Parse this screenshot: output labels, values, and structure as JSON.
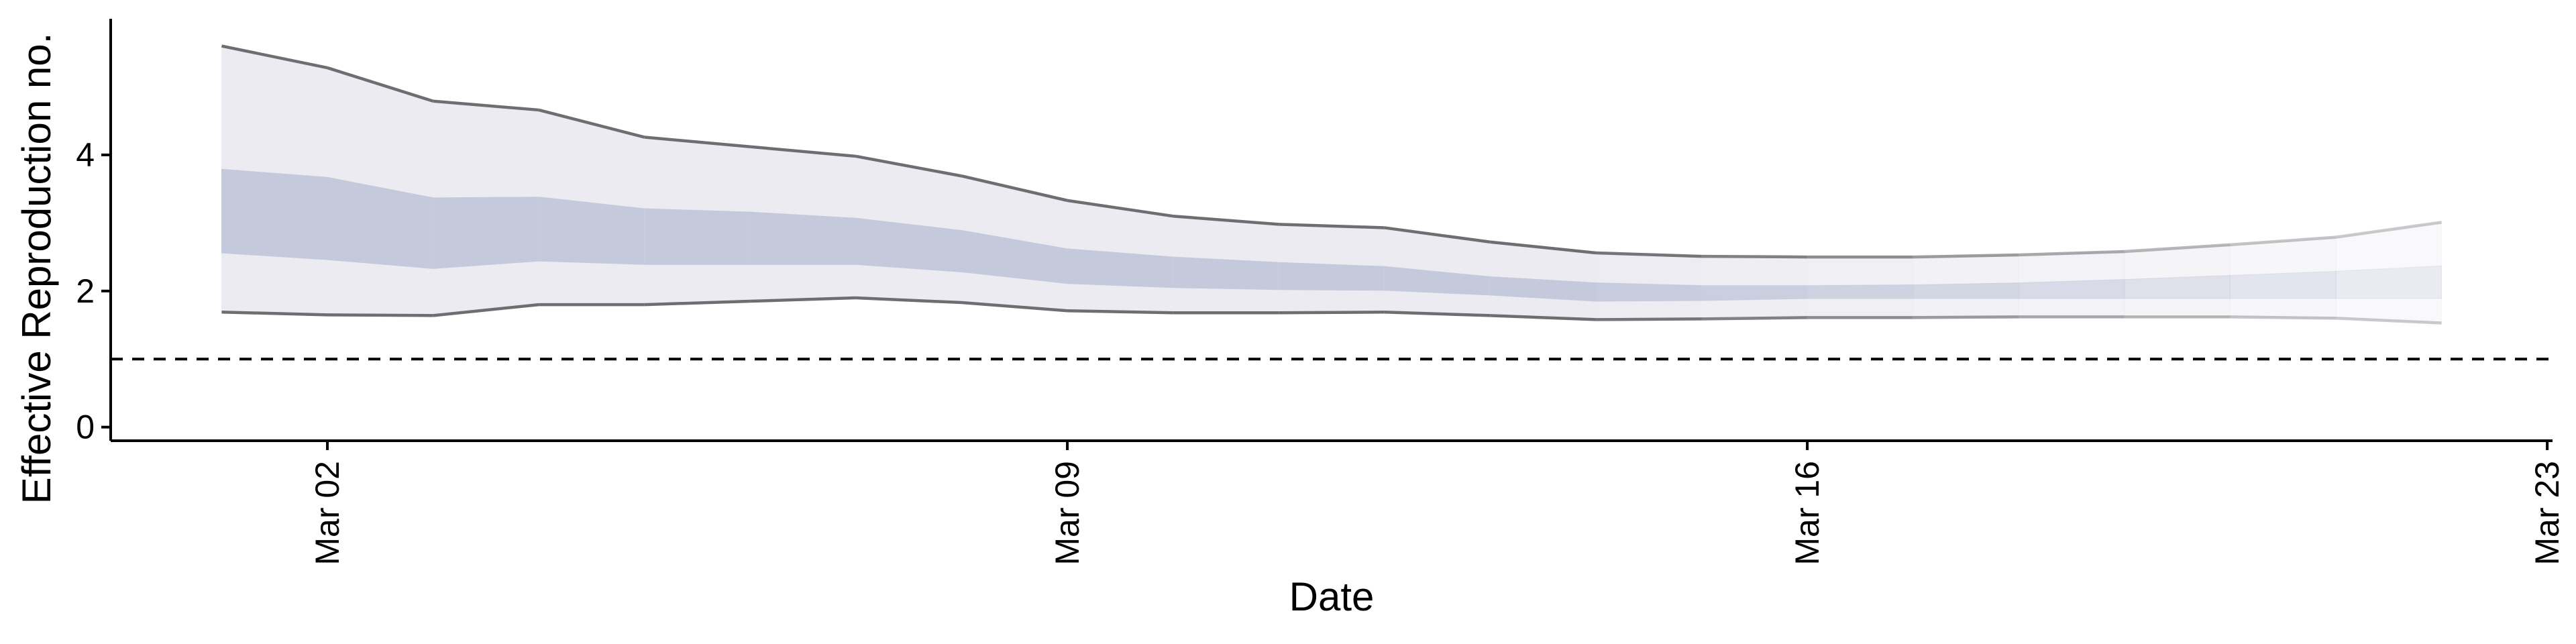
{
  "chart_data": {
    "type": "area",
    "xlabel": "Date",
    "ylabel": "Effective Reproduction no.",
    "x_ticks": [
      "Mar 02",
      "Mar 09",
      "Mar 16",
      "Mar 23"
    ],
    "x_tick_day": [
      2,
      9,
      16,
      23
    ],
    "xlim": [
      -0.05,
      23.05
    ],
    "y_ticks": [
      "0",
      "2",
      "4"
    ],
    "y_tick_values": [
      0,
      2,
      4
    ],
    "ylim": [
      -0.2,
      6.0
    ],
    "reference_line": 1,
    "grid": false,
    "legend": "none",
    "colors": {
      "outer_band": "#ebebf1",
      "inner_band": "#c4cadb",
      "bound_line": "#6e6e72",
      "forecast_start_day": 14
    },
    "series": {
      "day": [
        1,
        2,
        3,
        4,
        5,
        6,
        7,
        8,
        9,
        10,
        11,
        12,
        13,
        14,
        15,
        16,
        17,
        18,
        19,
        20,
        21,
        22
      ],
      "upper_90": [
        5.6,
        5.28,
        4.79,
        4.66,
        4.26,
        4.12,
        3.98,
        3.69,
        3.33,
        3.1,
        2.98,
        2.93,
        2.72,
        2.56,
        2.51,
        2.5,
        2.5,
        2.53,
        2.58,
        2.68,
        2.79,
        3.01
      ],
      "upper_50": [
        3.79,
        3.67,
        3.37,
        3.38,
        3.21,
        3.16,
        3.07,
        2.89,
        2.62,
        2.5,
        2.42,
        2.36,
        2.21,
        2.12,
        2.08,
        2.08,
        2.09,
        2.12,
        2.17,
        2.23,
        2.29,
        2.37
      ],
      "lower_50": [
        2.56,
        2.46,
        2.33,
        2.44,
        2.39,
        2.39,
        2.39,
        2.28,
        2.11,
        2.05,
        2.02,
        2.01,
        1.94,
        1.85,
        1.86,
        1.89,
        1.89,
        1.89,
        1.89,
        1.89,
        1.89,
        1.89
      ],
      "lower_90": [
        1.69,
        1.65,
        1.64,
        1.8,
        1.8,
        1.85,
        1.9,
        1.83,
        1.71,
        1.68,
        1.68,
        1.69,
        1.64,
        1.58,
        1.59,
        1.61,
        1.61,
        1.62,
        1.62,
        1.62,
        1.6,
        1.53
      ]
    }
  }
}
